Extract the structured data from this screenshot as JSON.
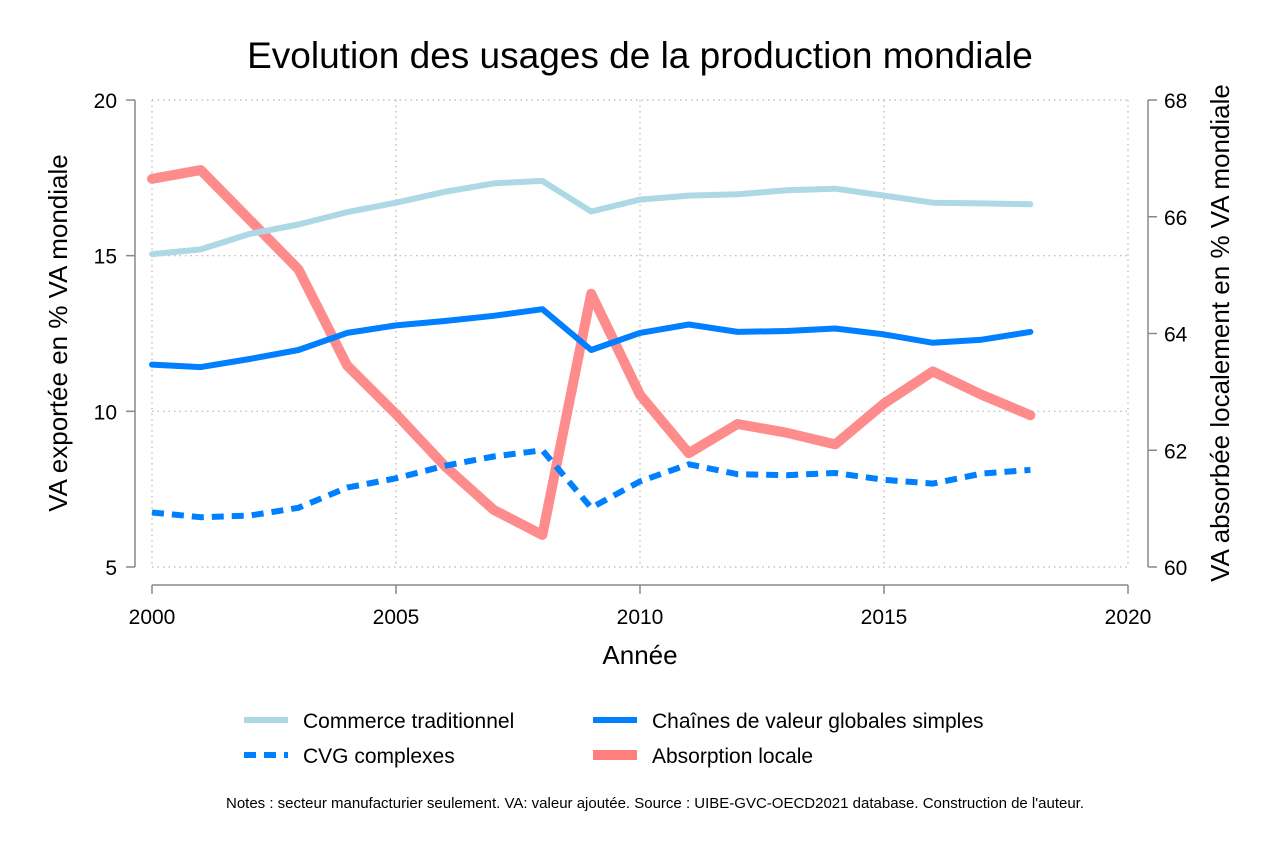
{
  "chart_data": {
    "type": "line",
    "title": "Evolution des usages de la production mondiale",
    "xlabel": "Année",
    "ylabel_left": "VA exportée en % VA mondiale",
    "ylabel_right": "VA absorbée localement en % VA mondiale",
    "xlim": [
      2000,
      2020
    ],
    "ylim_left": [
      5,
      20
    ],
    "ylim_right": [
      60,
      68
    ],
    "x_ticks": [
      "2000",
      "2005",
      "2010",
      "2015",
      "2020"
    ],
    "y_left_ticks": [
      "5",
      "10",
      "15",
      "20"
    ],
    "y_right_ticks": [
      "60",
      "62",
      "64",
      "66",
      "68"
    ],
    "grid": true,
    "legend_position": "bottom",
    "x": [
      2000,
      2001,
      2002,
      2003,
      2004,
      2005,
      2006,
      2007,
      2008,
      2009,
      2010,
      2011,
      2012,
      2013,
      2014,
      2015,
      2016,
      2017,
      2018
    ],
    "series": [
      {
        "name": "Commerce traditionnel",
        "axis": "left",
        "color": "#add8e6",
        "style": "solid",
        "values": [
          15.05,
          15.2,
          15.7,
          16.0,
          16.4,
          16.7,
          17.05,
          17.32,
          17.4,
          16.42,
          16.8,
          16.93,
          16.97,
          17.1,
          17.15,
          16.93,
          16.7,
          16.68,
          16.65
        ]
      },
      {
        "name": "Chaînes de valeur globales simples",
        "axis": "left",
        "color": "#007fff",
        "style": "solid",
        "values": [
          11.5,
          11.42,
          11.68,
          11.97,
          12.52,
          12.76,
          12.9,
          13.07,
          13.28,
          11.97,
          12.52,
          12.79,
          12.55,
          12.58,
          12.66,
          12.47,
          12.2,
          12.3,
          12.55
        ]
      },
      {
        "name": "CVG complexes",
        "axis": "left",
        "color": "#007fff",
        "style": "dashed",
        "values": [
          6.75,
          6.6,
          6.65,
          6.9,
          7.55,
          7.85,
          8.25,
          8.55,
          8.75,
          6.9,
          7.75,
          8.3,
          7.98,
          7.95,
          8.02,
          7.8,
          7.68,
          8.0,
          8.12
        ]
      },
      {
        "name": "Absorption locale",
        "axis": "right",
        "color": "#ff7f7f",
        "style": "solid",
        "values": [
          66.65,
          66.8,
          65.95,
          65.1,
          63.45,
          62.62,
          61.73,
          60.98,
          60.55,
          64.68,
          62.95,
          61.95,
          62.45,
          62.3,
          62.1,
          62.8,
          63.35,
          62.95,
          62.6
        ]
      }
    ]
  },
  "note": "Notes : secteur manufacturier seulement. VA: valeur ajoutée. Source : UIBE-GVC-OECD2021 database. Construction de l'auteur."
}
